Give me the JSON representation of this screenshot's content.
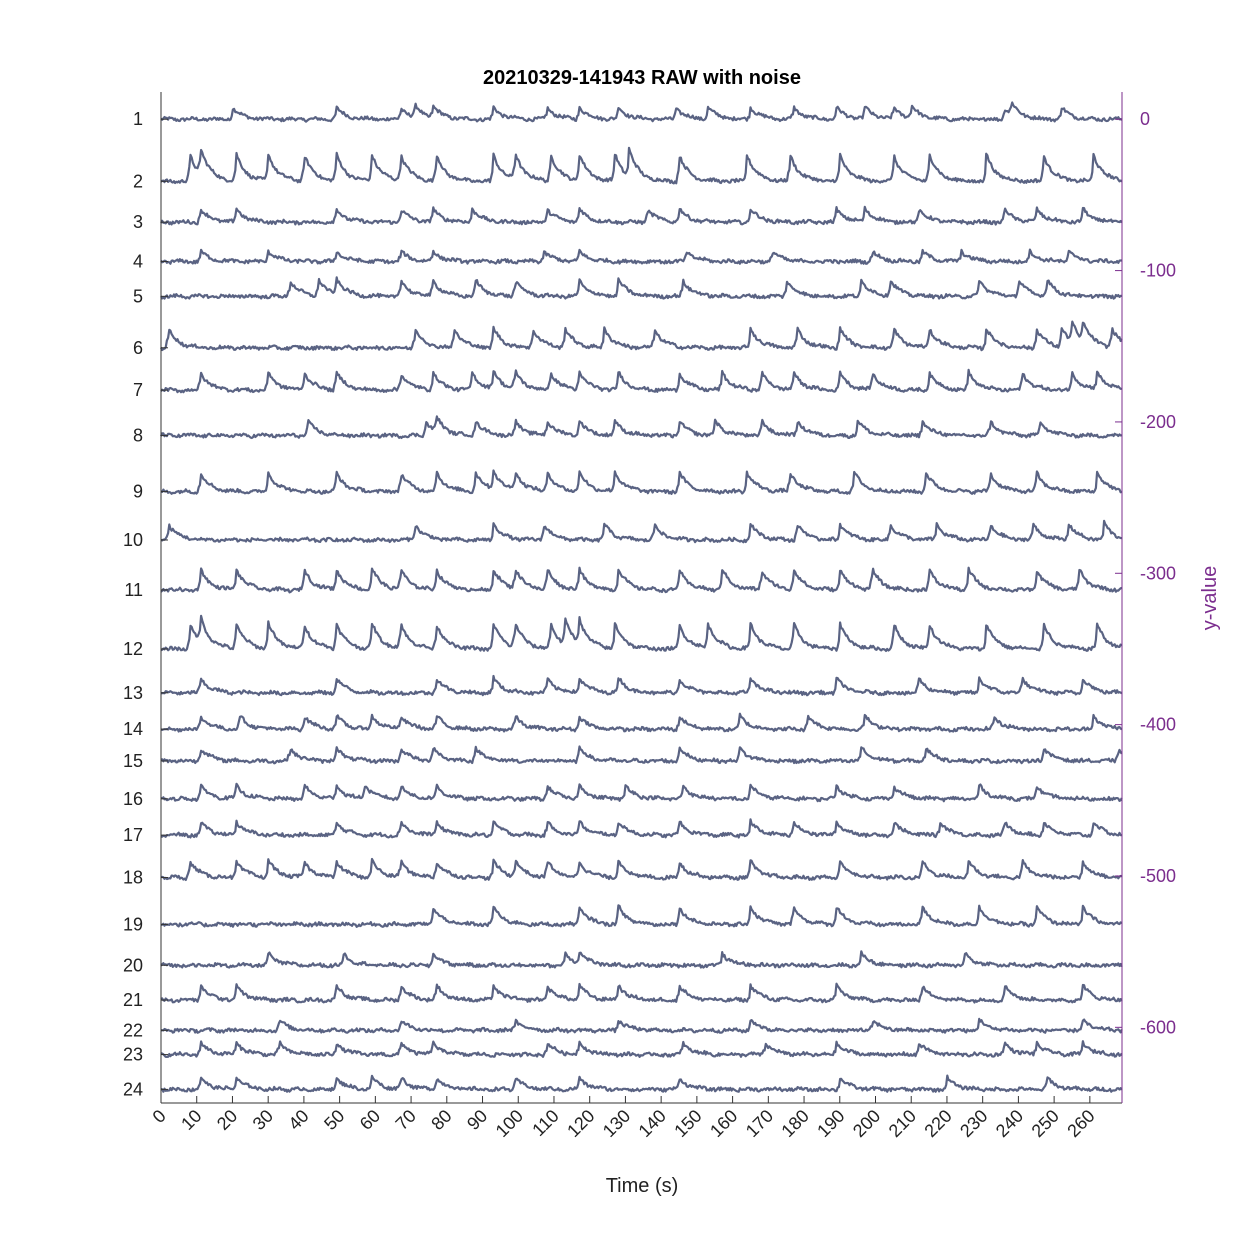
{
  "chart_data": {
    "type": "line",
    "title": "20210329-141943 RAW with noise",
    "xlabel": "Time (s)",
    "ylabel_right": "y-value",
    "xlim": [
      0,
      269
    ],
    "x_ticks": [
      0,
      10,
      20,
      30,
      40,
      50,
      60,
      70,
      80,
      90,
      100,
      110,
      120,
      130,
      140,
      150,
      160,
      170,
      180,
      190,
      200,
      210,
      220,
      230,
      240,
      250,
      260
    ],
    "ylim_right": [
      -650,
      18
    ],
    "y_ticks_right": [
      0,
      -100,
      -200,
      -300,
      -400,
      -500,
      -600
    ],
    "colors": {
      "trace": "#5a6383",
      "right_axis": "#7b2d8e",
      "left_axis": "#333333"
    },
    "series": [
      {
        "name": "1",
        "baseline": 0,
        "amplitude": 8,
        "events": [
          20,
          49,
          67,
          71,
          76,
          93,
          108,
          117,
          128,
          144,
          153,
          165,
          177,
          189,
          197,
          205,
          210,
          236,
          238,
          252
        ]
      },
      {
        "name": "2",
        "baseline": -41,
        "amplitude": 18,
        "events": [
          8,
          11,
          21,
          30,
          40,
          49,
          59,
          67,
          77,
          93,
          99,
          109,
          117,
          127,
          131,
          145,
          164,
          176,
          190,
          205,
          215,
          231,
          247,
          261
        ]
      },
      {
        "name": "3",
        "baseline": -68,
        "amplitude": 9,
        "events": [
          11,
          21,
          49,
          67,
          76,
          87,
          108,
          117,
          136,
          145,
          165,
          189,
          197,
          212,
          236,
          245,
          258
        ]
      },
      {
        "name": "4",
        "baseline": -94,
        "amplitude": 7,
        "events": [
          11,
          30,
          49,
          67,
          76,
          107,
          117,
          147,
          171,
          199,
          213,
          224,
          243,
          254
        ]
      },
      {
        "name": "5",
        "baseline": -117,
        "amplitude": 11,
        "events": [
          36,
          44,
          49,
          67,
          76,
          88,
          99,
          117,
          128,
          146,
          175,
          196,
          204,
          229,
          240,
          248
        ]
      },
      {
        "name": "6",
        "baseline": -151,
        "amplitude": 13,
        "events": [
          2,
          71,
          82,
          93,
          104,
          113,
          124,
          138,
          165,
          178,
          190,
          205,
          215,
          231,
          245,
          252,
          255,
          258,
          266
        ]
      },
      {
        "name": "7",
        "baseline": -179,
        "amplitude": 12,
        "events": [
          11,
          30,
          40,
          49,
          67,
          76,
          87,
          93,
          99,
          109,
          117,
          128,
          145,
          157,
          168,
          177,
          190,
          199,
          215,
          226,
          241,
          255,
          262
        ]
      },
      {
        "name": "8",
        "baseline": -209,
        "amplitude": 10,
        "events": [
          41,
          74,
          77,
          88,
          99,
          108,
          117,
          127,
          145,
          155,
          168,
          178,
          195,
          213,
          232,
          246
        ]
      },
      {
        "name": "9",
        "baseline": -246,
        "amplitude": 13,
        "events": [
          11,
          30,
          49,
          67,
          77,
          88,
          93,
          99,
          108,
          117,
          127,
          145,
          164,
          176,
          194,
          214,
          232,
          245,
          262
        ]
      },
      {
        "name": "10",
        "baseline": -278,
        "amplitude": 11,
        "events": [
          2,
          71,
          93,
          107,
          124,
          138,
          165,
          178,
          190,
          204,
          217,
          232,
          244,
          254,
          264
        ]
      },
      {
        "name": "11",
        "baseline": -311,
        "amplitude": 14,
        "events": [
          11,
          21,
          40,
          49,
          59,
          67,
          77,
          93,
          99,
          108,
          117,
          128,
          145,
          157,
          168,
          177,
          190,
          199,
          215,
          226,
          245,
          257
        ]
      },
      {
        "name": "12",
        "baseline": -350,
        "amplitude": 17,
        "events": [
          8,
          11,
          21,
          30,
          40,
          49,
          59,
          67,
          77,
          93,
          99,
          109,
          113,
          117,
          127,
          145,
          153,
          165,
          177,
          190,
          205,
          215,
          231,
          247,
          262
        ]
      },
      {
        "name": "13",
        "baseline": -379,
        "amplitude": 10,
        "events": [
          11,
          49,
          77,
          93,
          108,
          117,
          128,
          145,
          165,
          189,
          212,
          229,
          241,
          258
        ]
      },
      {
        "name": "14",
        "baseline": -403,
        "amplitude": 9,
        "events": [
          11,
          22,
          40,
          49,
          59,
          67,
          77,
          99,
          117,
          145,
          162,
          181,
          197,
          233,
          261
        ]
      },
      {
        "name": "15",
        "baseline": -424,
        "amplitude": 9,
        "events": [
          11,
          36,
          49,
          67,
          76,
          88,
          117,
          145,
          162,
          196,
          214,
          247,
          268
        ]
      },
      {
        "name": "16",
        "baseline": -449,
        "amplitude": 9,
        "events": [
          11,
          21,
          40,
          49,
          57,
          67,
          77,
          108,
          117,
          130,
          146,
          165,
          189,
          205,
          229,
          245
        ]
      },
      {
        "name": "17",
        "baseline": -473,
        "amplitude": 9,
        "events": [
          11,
          21,
          49,
          67,
          77,
          93,
          108,
          117,
          128,
          145,
          165,
          177,
          189,
          205,
          218,
          236,
          247,
          261
        ]
      },
      {
        "name": "18",
        "baseline": -501,
        "amplitude": 11,
        "events": [
          8,
          21,
          30,
          40,
          49,
          59,
          67,
          77,
          93,
          99,
          108,
          117,
          128,
          145,
          165,
          190,
          213,
          226,
          241,
          258
        ]
      },
      {
        "name": "19",
        "baseline": -532,
        "amplitude": 12,
        "events": [
          76,
          93,
          117,
          128,
          145,
          165,
          177,
          189,
          213,
          229,
          245,
          258
        ]
      },
      {
        "name": "20",
        "baseline": -559,
        "amplitude": 8,
        "events": [
          30,
          51,
          76,
          113,
          117,
          157,
          196,
          225
        ]
      },
      {
        "name": "21",
        "baseline": -582,
        "amplitude": 10,
        "events": [
          11,
          21,
          49,
          67,
          77,
          93,
          108,
          117,
          128,
          145,
          165,
          189,
          213,
          236,
          258
        ]
      },
      {
        "name": "22",
        "baseline": -602,
        "amplitude": 7,
        "events": [
          33,
          67,
          99,
          128,
          165,
          199,
          229,
          258
        ]
      },
      {
        "name": "23",
        "baseline": -618,
        "amplitude": 8,
        "events": [
          11,
          21,
          33,
          49,
          67,
          76,
          108,
          117,
          146,
          169,
          189,
          212,
          236,
          245,
          258
        ]
      },
      {
        "name": "24",
        "baseline": -641,
        "amplitude": 8,
        "events": [
          11,
          21,
          49,
          59,
          67,
          77,
          99,
          117,
          145,
          190,
          220,
          248
        ]
      }
    ]
  }
}
